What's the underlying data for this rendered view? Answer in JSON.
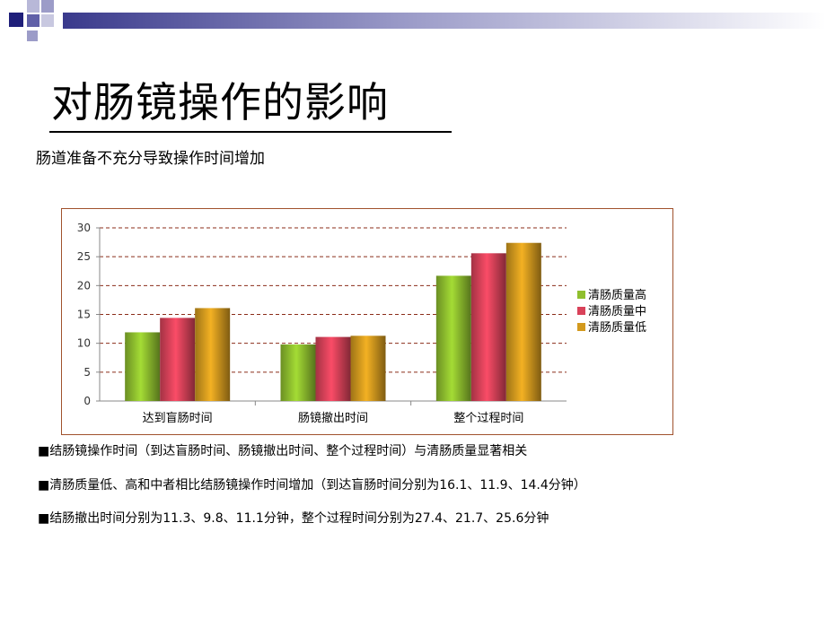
{
  "slide": {
    "title": "对肠镜操作的影响",
    "subtitle": "肠道准备不充分导致操作时间增加",
    "bullets": [
      "■结肠镜操作时间（到达盲肠时间、肠镜撤出时间、整个过程时间）与清肠质量显著相关",
      "■清肠质量低、高和中者相比结肠镜操作时间增加（到达盲肠时间分别为16.1、11.9、14.4分钟）",
      "■结肠撤出时间分别为11.3、9.8、11.1分钟，整个过程时间分别为27.4、21.7、25.6分钟"
    ]
  },
  "colors": {
    "high": "#8fbf2e",
    "mid": "#d9425a",
    "low": "#d39a1e",
    "frame": "#a0522d",
    "grid": "#8b2d1a"
  },
  "chart_data": {
    "type": "bar",
    "categories": [
      "达到盲肠时间",
      "肠镜撤出时间",
      "整个过程时间"
    ],
    "series": [
      {
        "name": "清肠质量高",
        "values": [
          11.9,
          9.8,
          21.7
        ]
      },
      {
        "name": "清肠质量中",
        "values": [
          14.4,
          11.1,
          25.6
        ]
      },
      {
        "name": "清肠质量低",
        "values": [
          16.1,
          11.3,
          27.4
        ]
      }
    ],
    "ylim": [
      0,
      30
    ],
    "yticks": [
      "0",
      "5",
      "10",
      "15",
      "20",
      "25",
      "30"
    ],
    "grid": true,
    "legend_position": "right"
  }
}
